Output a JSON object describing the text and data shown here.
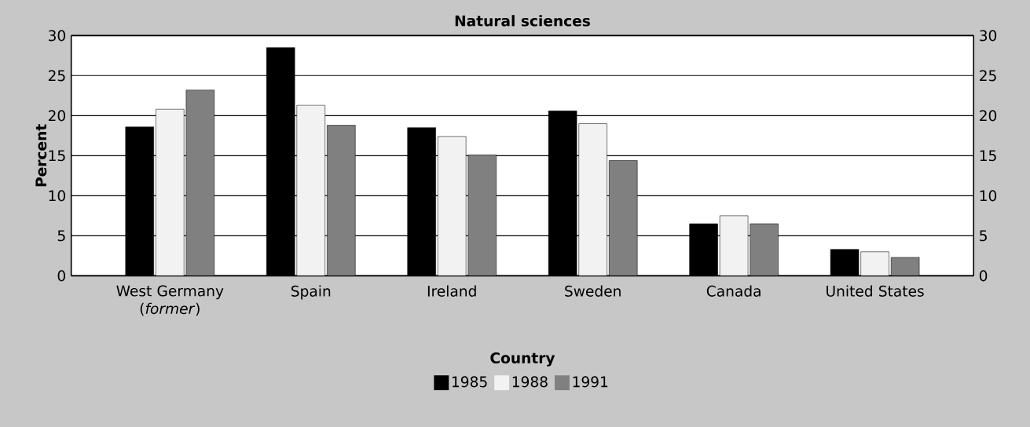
{
  "chart_data": {
    "type": "bar",
    "title": "Natural sciences",
    "xlabel": "Country",
    "ylabel": "Percent",
    "categories": [
      "West Germany (*former*)",
      "Spain",
      "Ireland",
      "Sweden",
      "Canada",
      "United States"
    ],
    "series": [
      {
        "name": "1985",
        "color": "#000000",
        "values": [
          18.6,
          28.5,
          18.5,
          20.6,
          6.5,
          3.3
        ]
      },
      {
        "name": "1988",
        "color": "#f2f2f2",
        "values": [
          20.8,
          21.3,
          17.4,
          19.0,
          7.5,
          3.0
        ]
      },
      {
        "name": "1991",
        "color": "#808080",
        "values": [
          23.2,
          18.8,
          15.1,
          14.4,
          6.5,
          2.3
        ]
      }
    ],
    "ylim": [
      0,
      30
    ],
    "yticks": [
      0,
      5,
      10,
      15,
      20,
      25,
      30
    ],
    "y2lim": [
      0,
      30
    ],
    "y2ticks": [
      0,
      5,
      10,
      15,
      20,
      25,
      30
    ],
    "grid": "y",
    "legend": "bottom"
  }
}
